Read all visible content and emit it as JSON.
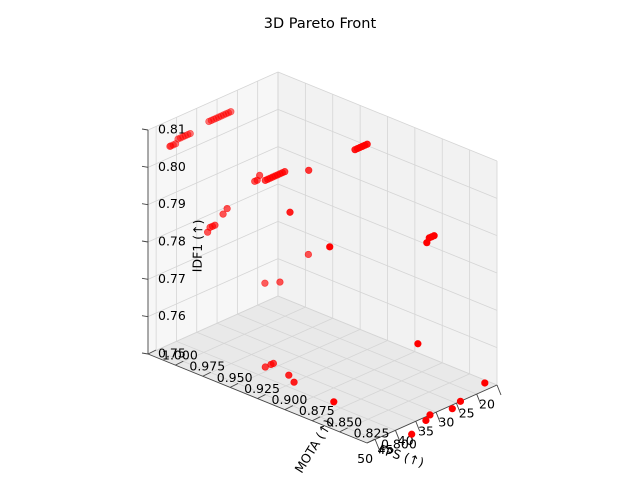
{
  "chart_data": {
    "type": "scatter",
    "title": "3D Pareto Front",
    "xlabel": "FPS (↑)",
    "ylabel": "MOTA (↑)",
    "zlabel": "IDF1 (↑)",
    "xlim": [
      20,
      52
    ],
    "ylim": [
      0.8,
      1.0
    ],
    "zlim": [
      0.75,
      0.81
    ],
    "xticks": [
      "20",
      "25",
      "30",
      "35",
      "40",
      "45",
      "50"
    ],
    "yticks": [
      "0.800",
      "0.825",
      "0.850",
      "0.875",
      "0.900",
      "0.925",
      "0.950",
      "0.975",
      "1.000"
    ],
    "zticks": [
      "0.75",
      "0.76",
      "0.77",
      "0.78",
      "0.79",
      "0.80",
      "0.81"
    ],
    "grid": true,
    "marker_color": "#ff0000",
    "series": [
      {
        "points": [
          [
            37.0,
            0.98,
            0.81
          ],
          [
            37.6,
            0.98,
            0.81
          ],
          [
            38.2,
            0.98,
            0.81
          ],
          [
            38.8,
            0.98,
            0.81
          ],
          [
            39.4,
            0.98,
            0.81
          ],
          [
            40.0,
            0.98,
            0.81
          ],
          [
            40.6,
            0.98,
            0.81
          ],
          [
            41.2,
            0.98,
            0.81
          ],
          [
            41.8,
            0.98,
            0.81
          ],
          [
            42.4,
            0.98,
            0.81
          ],
          [
            47.0,
            0.98,
            0.809
          ],
          [
            47.6,
            0.98,
            0.809
          ],
          [
            48.2,
            0.98,
            0.809
          ],
          [
            48.8,
            0.98,
            0.809
          ],
          [
            49.4,
            0.98,
            0.809
          ],
          [
            50.0,
            0.98,
            0.809
          ],
          [
            50.6,
            0.98,
            0.808
          ],
          [
            51.2,
            0.98,
            0.808
          ],
          [
            51.8,
            0.98,
            0.808
          ],
          [
            52.0,
            0.98,
            0.808
          ],
          [
            25.0,
            0.9,
            0.805
          ],
          [
            25.6,
            0.9,
            0.805
          ],
          [
            26.2,
            0.9,
            0.805
          ],
          [
            26.8,
            0.9,
            0.805
          ],
          [
            27.4,
            0.9,
            0.805
          ],
          [
            28.0,
            0.9,
            0.805
          ],
          [
            37.2,
            0.93,
            0.8
          ],
          [
            37.8,
            0.93,
            0.8
          ],
          [
            38.4,
            0.93,
            0.8
          ],
          [
            39.0,
            0.93,
            0.8
          ],
          [
            39.6,
            0.93,
            0.8
          ],
          [
            40.2,
            0.93,
            0.8
          ],
          [
            40.8,
            0.93,
            0.8
          ],
          [
            41.4,
            0.93,
            0.8
          ],
          [
            42.0,
            0.93,
            0.8
          ],
          [
            34.0,
            0.92,
            0.8
          ],
          [
            44.0,
            0.9,
            0.796
          ],
          [
            45.0,
            0.86,
            0.792
          ],
          [
            38.0,
            0.95,
            0.797
          ],
          [
            38.6,
            0.95,
            0.796
          ],
          [
            39.2,
            0.95,
            0.796
          ],
          [
            46.0,
            0.95,
            0.792
          ],
          [
            47.0,
            0.95,
            0.791
          ],
          [
            49.0,
            0.95,
            0.789
          ],
          [
            49.6,
            0.95,
            0.789
          ],
          [
            50.2,
            0.95,
            0.789
          ],
          [
            50.8,
            0.95,
            0.788
          ],
          [
            22.0,
            0.85,
            0.785
          ],
          [
            22.6,
            0.85,
            0.785
          ],
          [
            23.2,
            0.85,
            0.785
          ],
          [
            23.8,
            0.85,
            0.784
          ],
          [
            26.0,
            0.95,
            0.77
          ],
          [
            33.0,
            0.95,
            0.766
          ],
          [
            34.0,
            0.96,
            0.765
          ],
          [
            26.0,
            0.85,
            0.758
          ],
          [
            40.0,
            0.93,
            0.75
          ],
          [
            40.6,
            0.93,
            0.75
          ],
          [
            42.0,
            0.93,
            0.75
          ],
          [
            41.6,
            0.91,
            0.75
          ],
          [
            43.0,
            0.9,
            0.75
          ],
          [
            44.0,
            0.86,
            0.75
          ],
          [
            23.0,
            0.8,
            0.752
          ],
          [
            29.0,
            0.8,
            0.75
          ],
          [
            31.0,
            0.8,
            0.749
          ],
          [
            36.5,
            0.8,
            0.75
          ],
          [
            37.5,
            0.8,
            0.749
          ],
          [
            41.0,
            0.8,
            0.747
          ]
        ]
      }
    ]
  }
}
